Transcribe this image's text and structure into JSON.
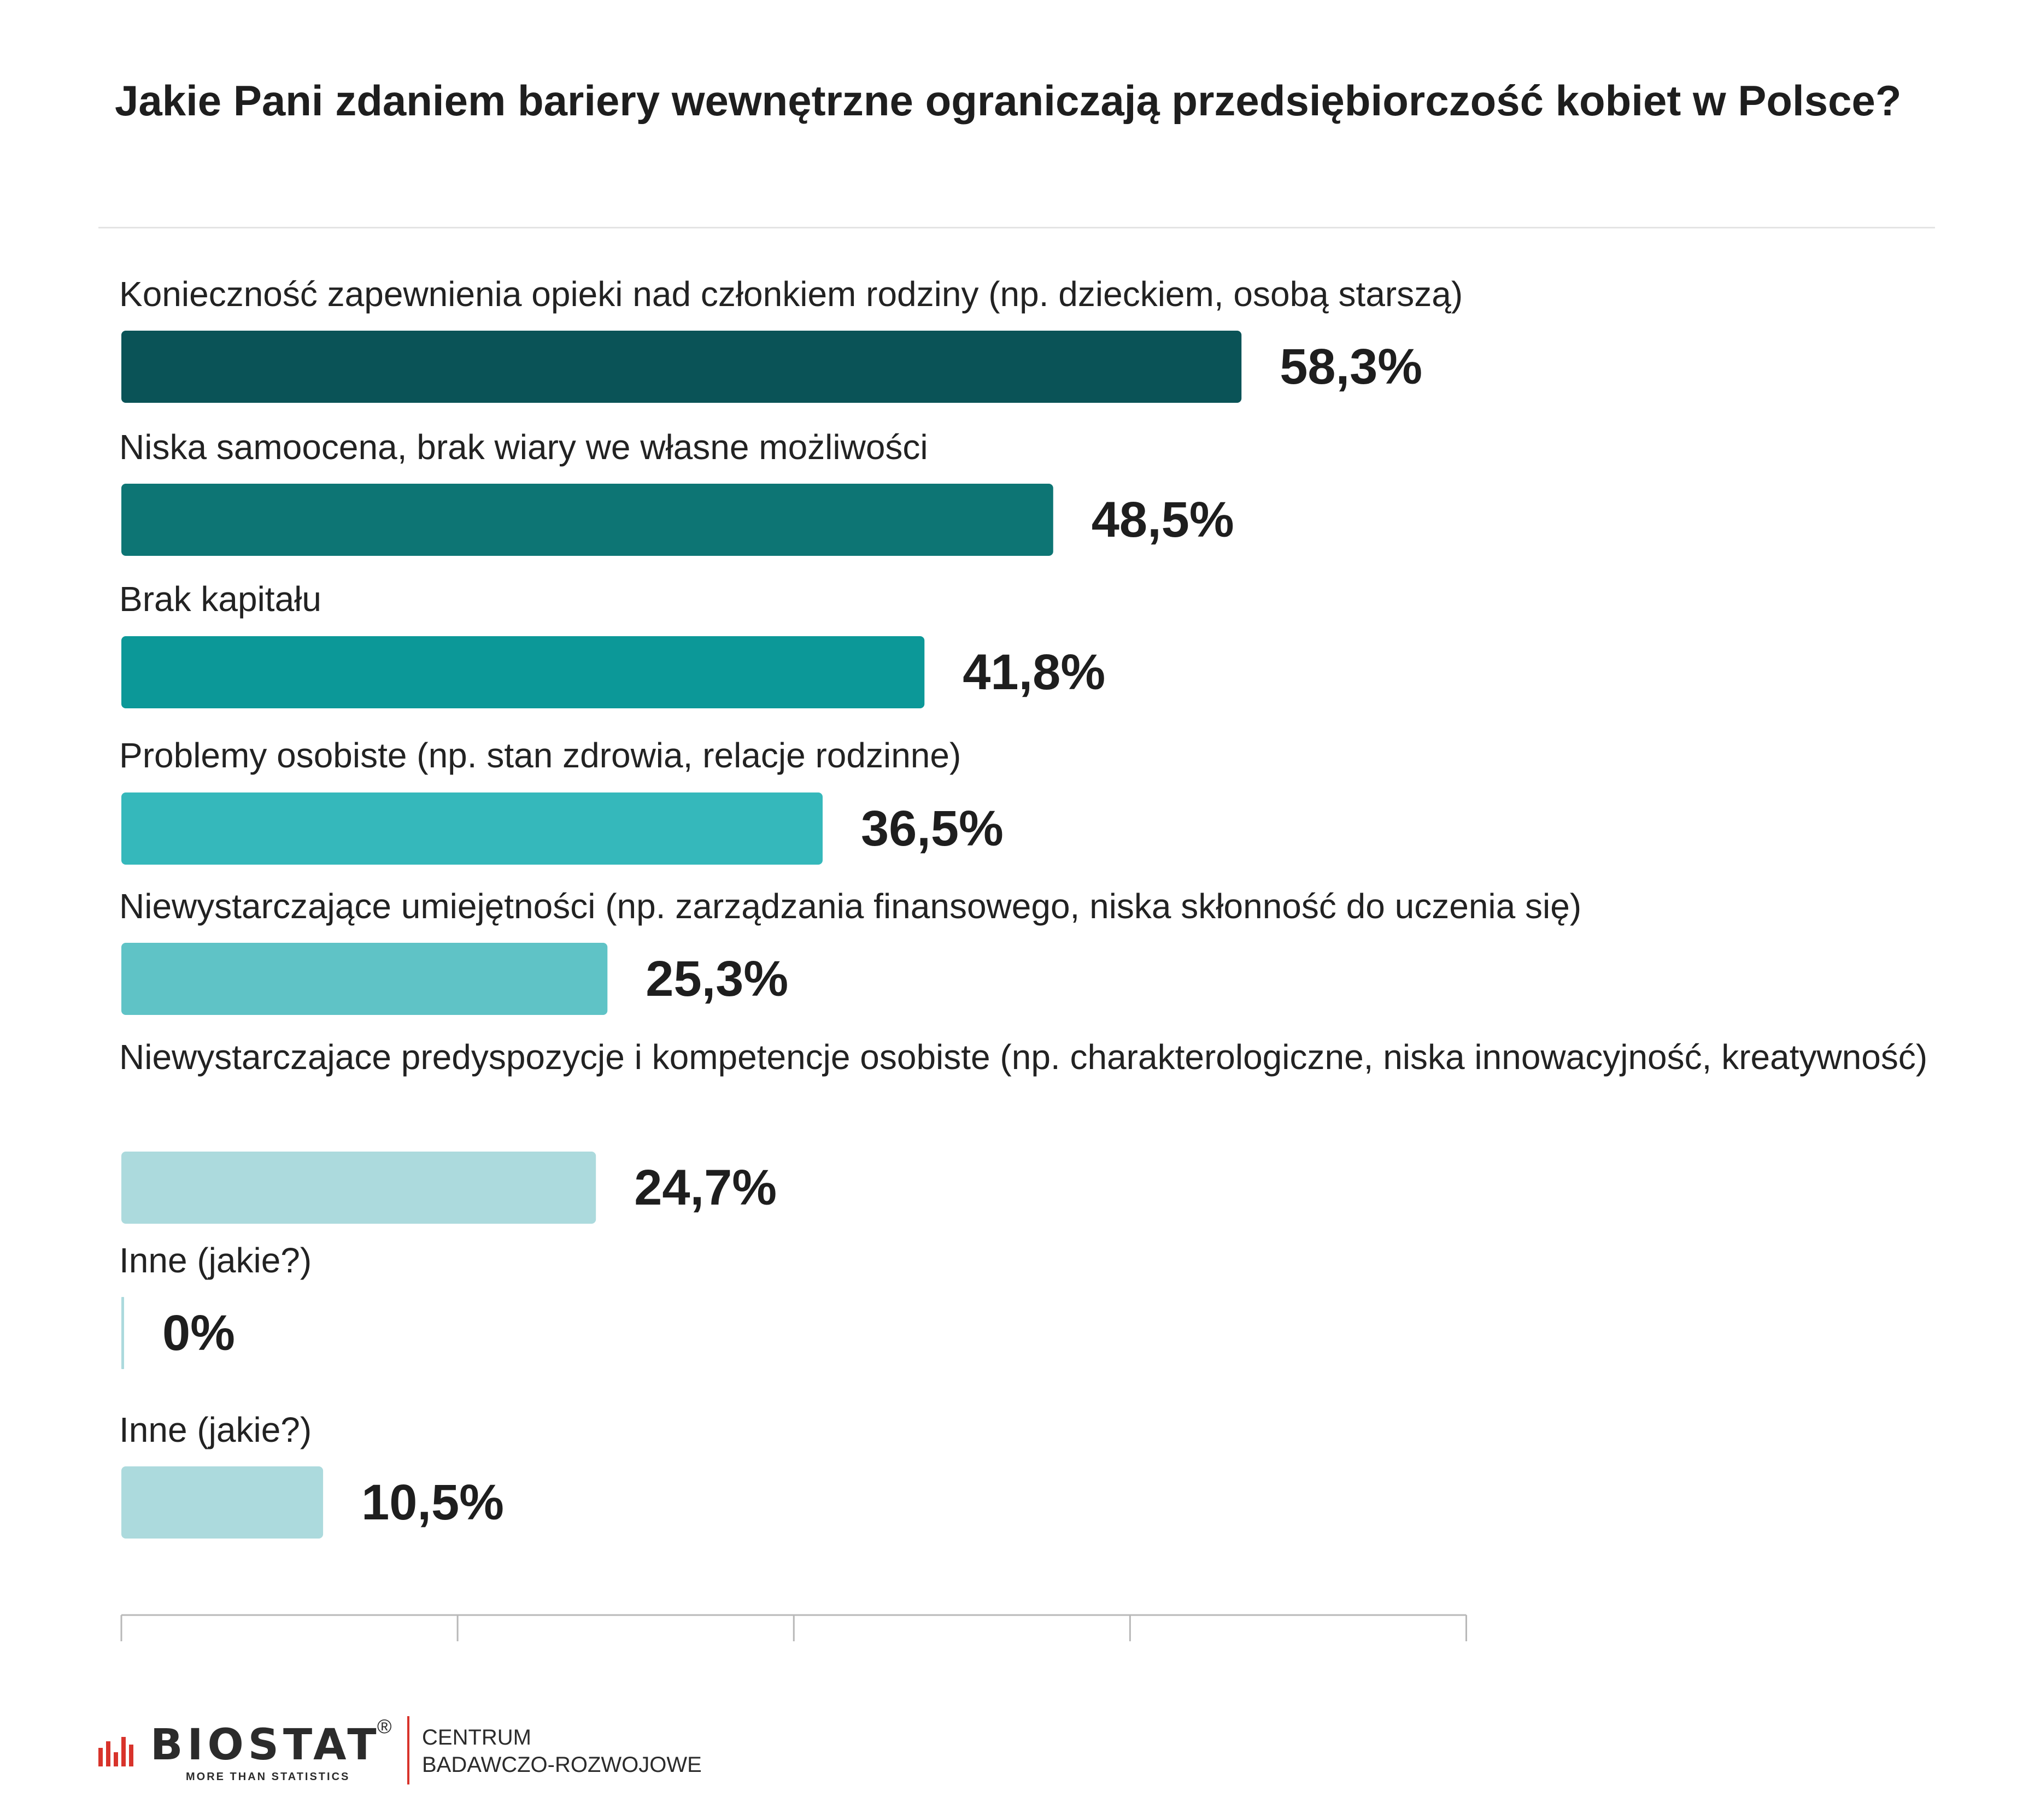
{
  "chart_data": {
    "type": "bar",
    "orientation": "horizontal",
    "title": "Jakie Pani zdaniem bariery wewnętrzne ograniczają przedsiębiorczość kobiet w Polsce?",
    "categories": [
      "Konieczność zapewnienia opieki nad członkiem rodziny (np. dzieckiem, osobą starszą)",
      "Niska samoocena, brak wiary we własne możliwości",
      "Brak kapitału",
      "Problemy osobiste (np. stan zdrowia, relacje rodzinne)",
      "Niewystarczające umiejętności (np. zarządzania finansowego, niska skłonność do uczenia się)",
      "Niewystarczajace predyspozycje i kompetencje osobiste (np. charakterologiczne, niska innowacyjność, kreatywność)",
      "Inne (jakie?)",
      "Inne (jakie?)"
    ],
    "values": [
      58.3,
      48.5,
      41.8,
      36.5,
      25.3,
      24.7,
      0,
      10.5
    ],
    "value_labels": [
      "58,3%",
      "48,5%",
      "41,8%",
      "36,5%",
      "25,3%",
      "24,7%",
      "0%",
      "10,5%"
    ],
    "bar_colors": [
      "#0a5357",
      "#0d7574",
      "#0c9898",
      "#35b8bb",
      "#5fc3c6",
      "#acdadd",
      "#acdadd",
      "#acdadd"
    ],
    "xlim": [
      0,
      70
    ],
    "grid": false,
    "legend": "none"
  },
  "brand": {
    "logo_text": "BIOSTAT",
    "registered_mark": "®",
    "tagline": "MORE THAN STATISTICS",
    "subtitle_line1": "CENTRUM",
    "subtitle_line2": "BADAWCZO-ROZWOJOWE",
    "accent_color": "#d8332b"
  }
}
